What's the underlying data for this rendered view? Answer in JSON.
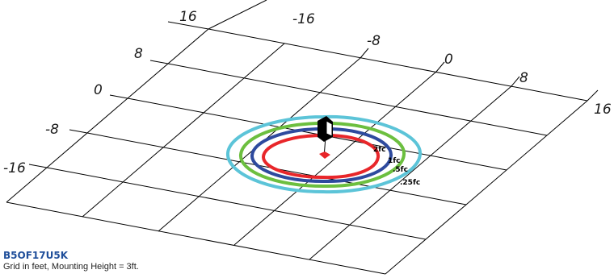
{
  "diagram": {
    "grid_unit": "feet",
    "grid_range": [
      -16,
      16
    ],
    "left_axis_labels": [
      "16",
      "8",
      "0",
      "-8",
      "-16"
    ],
    "top_axis_labels": [
      "-16",
      "-8",
      "0",
      "8",
      "16"
    ],
    "contours": [
      {
        "label": "2fc",
        "color": "#e8262a"
      },
      {
        "label": "1fc",
        "color": "#2e4a9e"
      },
      {
        "label": ".5fc",
        "color": "#6cbf3f"
      },
      {
        "label": ".25fc",
        "color": "#5cc4d8"
      }
    ],
    "fixture_icon": "bollard-fixture-icon"
  },
  "caption": {
    "model": "B5OF17U5K",
    "note": "Grid in feet, Mounting Height = 3ft."
  }
}
